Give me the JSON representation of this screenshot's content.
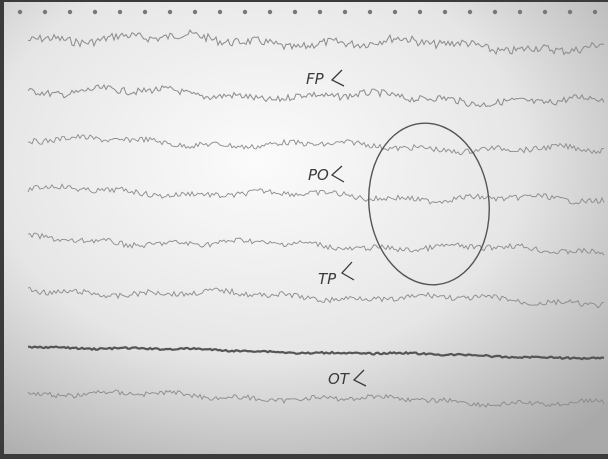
{
  "labels": [
    {
      "text": "FP"
    },
    {
      "text": "PO"
    },
    {
      "text": "TP"
    },
    {
      "text": "OT"
    }
  ]
}
